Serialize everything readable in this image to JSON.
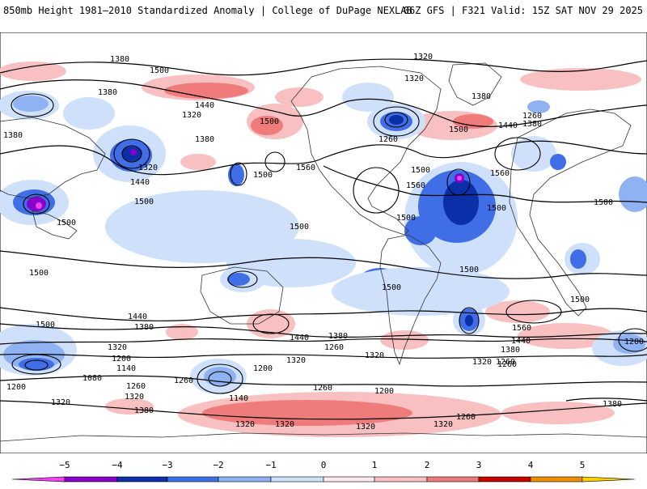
{
  "header": {
    "title": "850mb Height 1981–2010 Standardized Anomaly | College of DuPage NEXLAB",
    "run_info": "06Z GFS | F321 Valid: 15Z SAT NOV 29 2025"
  },
  "map": {
    "variable": "850mb geopotential height (dam contours) with standardized anomaly shading",
    "contour_labels": [
      {
        "text": "1380"
      },
      {
        "text": "1500"
      },
      {
        "text": "1380"
      },
      {
        "text": "1440"
      },
      {
        "text": "1320"
      },
      {
        "text": "1380"
      },
      {
        "text": "1320"
      },
      {
        "text": "1440"
      },
      {
        "text": "1380"
      },
      {
        "text": "1500"
      },
      {
        "text": "1500"
      },
      {
        "text": "1500"
      },
      {
        "text": "1500"
      },
      {
        "text": "1500"
      },
      {
        "text": "1560"
      },
      {
        "text": "1320"
      },
      {
        "text": "1320"
      },
      {
        "text": "1380"
      },
      {
        "text": "1260"
      },
      {
        "text": "1500"
      },
      {
        "text": "1560"
      },
      {
        "text": "1500"
      },
      {
        "text": "1440"
      },
      {
        "text": "1260"
      },
      {
        "text": "1380"
      },
      {
        "text": "1560"
      },
      {
        "text": "1500"
      },
      {
        "text": "1500"
      },
      {
        "text": "1500"
      },
      {
        "text": "1500"
      },
      {
        "text": "1500"
      },
      {
        "text": "1500"
      },
      {
        "text": "1560"
      },
      {
        "text": "1500"
      },
      {
        "text": "1440"
      },
      {
        "text": "1380"
      },
      {
        "text": "1500"
      },
      {
        "text": "1320"
      },
      {
        "text": "1200"
      },
      {
        "text": "1140"
      },
      {
        "text": "1080"
      },
      {
        "text": "1200"
      },
      {
        "text": "1260"
      },
      {
        "text": "1320"
      },
      {
        "text": "1320"
      },
      {
        "text": "1380"
      },
      {
        "text": "1260"
      },
      {
        "text": "1440"
      },
      {
        "text": "1380"
      },
      {
        "text": "1320"
      },
      {
        "text": "1260"
      },
      {
        "text": "1200"
      },
      {
        "text": "1140"
      },
      {
        "text": "1260"
      },
      {
        "text": "1320"
      },
      {
        "text": "1260"
      },
      {
        "text": "1200"
      },
      {
        "text": "1440"
      },
      {
        "text": "1380"
      },
      {
        "text": "1320"
      },
      {
        "text": "1260"
      },
      {
        "text": "1200"
      },
      {
        "text": "1380"
      },
      {
        "text": "1320"
      },
      {
        "text": "1320"
      },
      {
        "text": "1320"
      },
      {
        "text": "1320"
      },
      {
        "text": "1260"
      },
      {
        "text": "1380"
      },
      {
        "text": "1560"
      },
      {
        "text": "1500"
      }
    ]
  },
  "colorbar": {
    "ticks": [
      "−5",
      "−4",
      "−3",
      "−2",
      "−1",
      "0",
      "1",
      "2",
      "3",
      "4",
      "5"
    ],
    "colors": {
      "lt_m5": "#ee44ee",
      "m5_m4": "#8800cc",
      "m4_m3": "#0a2fa8",
      "m3_m2": "#3f6ee6",
      "m2_m1": "#8fb3f2",
      "m1_0": "#cfe0fb",
      "zero_1": "#fdeaea",
      "p1_p2": "#f8c0c0",
      "p2_p3": "#ef7b7b",
      "p3_p4": "#c80000",
      "p4_p5": "#f08c00",
      "gt_p5": "#ffd000"
    }
  }
}
